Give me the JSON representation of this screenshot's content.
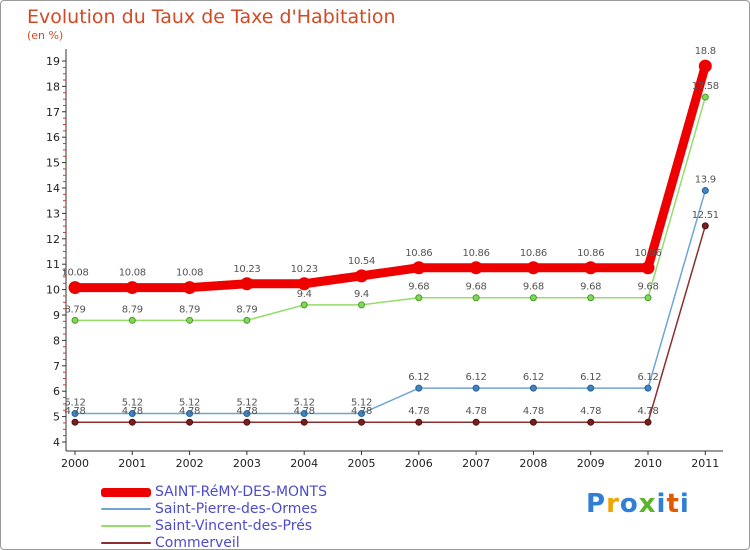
{
  "chart_data": {
    "type": "line",
    "title": "Evolution du Taux de Taxe d'Habitation",
    "subtitle": "(en %)",
    "x": [
      "2000",
      "2001",
      "2002",
      "2003",
      "2004",
      "2005",
      "2006",
      "2007",
      "2008",
      "2009",
      "2010",
      "2011"
    ],
    "ylim": [
      4,
      19
    ],
    "yticks": [
      "4",
      "5",
      "6",
      "7",
      "8",
      "9",
      "10",
      "11",
      "12",
      "13",
      "14",
      "15",
      "16",
      "17",
      "18",
      "19"
    ],
    "grid": false,
    "legend_position": "bottom-left",
    "series": [
      {
        "name": "SAINT-RéMY-DES-MONTS",
        "color": "#ee0000",
        "values": [
          10.08,
          10.08,
          10.08,
          10.23,
          10.23,
          10.54,
          10.86,
          10.86,
          10.86,
          10.86,
          10.86,
          18.8
        ],
        "labels": [
          "10.08",
          "10.08",
          "10.08",
          "10.23",
          "10.23",
          "10.54",
          "10.86",
          "10.86",
          "10.86",
          "10.86",
          "10.86",
          "18.8"
        ]
      },
      {
        "name": "Saint-Pierre-des-Ormes",
        "color": "#6fa5d6",
        "values": [
          5.12,
          5.12,
          5.12,
          5.12,
          5.12,
          5.12,
          6.12,
          6.12,
          6.12,
          6.12,
          6.12,
          13.9
        ],
        "labels": [
          "5.12",
          "5.12",
          "5.12",
          "5.12",
          "5.12",
          "5.12",
          "6.12",
          "6.12",
          "6.12",
          "6.12",
          "6.12",
          "13.9"
        ]
      },
      {
        "name": "Saint-Vincent-des-Prés",
        "color": "#96dc6a",
        "values": [
          8.79,
          8.79,
          8.79,
          8.79,
          9.4,
          9.4,
          9.68,
          9.68,
          9.68,
          9.68,
          9.68,
          17.58
        ],
        "labels": [
          "8.79",
          "8.79",
          "8.79",
          "8.79",
          "9.4",
          "9.4",
          "9.68",
          "9.68",
          "9.68",
          "9.68",
          "9.68",
          "17.58"
        ]
      },
      {
        "name": "Commerveil",
        "color": "#8a2e2e",
        "values": [
          4.78,
          4.78,
          4.78,
          4.78,
          4.78,
          4.78,
          4.78,
          4.78,
          4.78,
          4.78,
          4.78,
          12.51
        ],
        "labels": [
          "4.78",
          "4.78",
          "4.78",
          "4.78",
          "4.78",
          "4.78",
          "4.78",
          "4.78",
          "4.78",
          "4.78",
          "4.78",
          "12.51"
        ]
      }
    ]
  },
  "brand": {
    "letters": [
      "P",
      "r",
      "o",
      "x",
      "i",
      "t",
      "i"
    ],
    "colors": [
      "#2f7fd6",
      "#f0a500",
      "#2f7fd6",
      "#5ab52c",
      "#2f7fd6",
      "#e05a00",
      "#2f7fd6"
    ]
  }
}
